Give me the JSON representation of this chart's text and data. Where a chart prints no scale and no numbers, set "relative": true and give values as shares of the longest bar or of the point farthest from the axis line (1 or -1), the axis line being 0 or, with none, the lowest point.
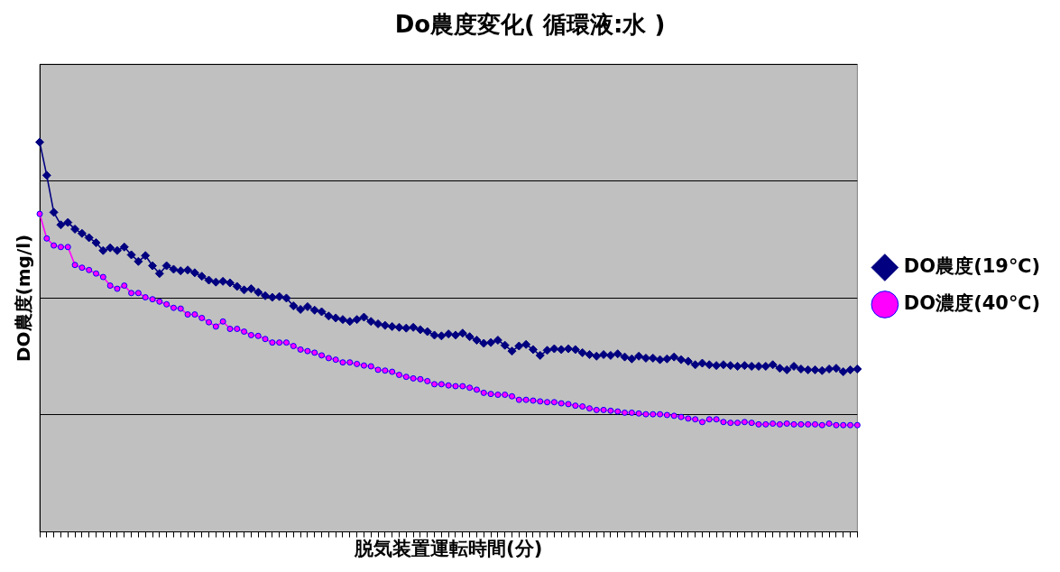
{
  "chart_data": {
    "type": "line",
    "title": "Do農度変化( 循環液:水 )",
    "xlabel": "脱気装置運転時間(分)",
    "ylabel": "DO農度(mg/l)",
    "relative": true,
    "grid": "y",
    "legend": "right",
    "categories": [
      null,
      null,
      null,
      null,
      null,
      null,
      null,
      null,
      null,
      null,
      null,
      null,
      null,
      null,
      null,
      null,
      null,
      null,
      null,
      null,
      null,
      null,
      null,
      null,
      null,
      null,
      null,
      null,
      null,
      null,
      null,
      null,
      null,
      null,
      null,
      null,
      null,
      null,
      null,
      null,
      null,
      null,
      null,
      null,
      null,
      null,
      null,
      null,
      null,
      null,
      null,
      null,
      null,
      null,
      null,
      null,
      null,
      null,
      null,
      null,
      null,
      null,
      null,
      null,
      null,
      null,
      null,
      null,
      null,
      null,
      null,
      null,
      null,
      null,
      null,
      null,
      null,
      null,
      null,
      null,
      null,
      null,
      null,
      null,
      null,
      null,
      null,
      null,
      null,
      null,
      null,
      null,
      null,
      null,
      null,
      null,
      null,
      null,
      null,
      null,
      null,
      null,
      null,
      null,
      null,
      null,
      null,
      null,
      null,
      null,
      null,
      null,
      null,
      null,
      null,
      null,
      null
    ],
    "series": [
      {
        "name": "DO農度(19℃)",
        "color": "#000080",
        "marker": "diamond",
        "values": [
          1.0,
          0.915,
          0.82,
          0.788,
          0.794,
          0.777,
          0.766,
          0.755,
          0.742,
          0.722,
          0.729,
          0.722,
          0.731,
          0.711,
          0.694,
          0.709,
          0.683,
          0.663,
          0.683,
          0.674,
          0.67,
          0.672,
          0.665,
          0.656,
          0.646,
          0.641,
          0.643,
          0.639,
          0.63,
          0.621,
          0.624,
          0.615,
          0.606,
          0.602,
          0.604,
          0.6,
          0.58,
          0.571,
          0.578,
          0.569,
          0.565,
          0.554,
          0.549,
          0.545,
          0.54,
          0.545,
          0.551,
          0.54,
          0.534,
          0.53,
          0.527,
          0.525,
          0.523,
          0.525,
          0.519,
          0.514,
          0.505,
          0.503,
          0.508,
          0.505,
          0.51,
          0.501,
          0.492,
          0.484,
          0.486,
          0.492,
          0.479,
          0.464,
          0.477,
          0.481,
          0.468,
          0.453,
          0.466,
          0.47,
          0.468,
          0.47,
          0.468,
          0.46,
          0.455,
          0.451,
          0.455,
          0.453,
          0.457,
          0.449,
          0.444,
          0.451,
          0.446,
          0.446,
          0.442,
          0.444,
          0.449,
          0.442,
          0.438,
          0.429,
          0.433,
          0.429,
          0.427,
          0.429,
          0.427,
          0.425,
          0.427,
          0.425,
          0.425,
          0.425,
          0.429,
          0.42,
          0.416,
          0.425,
          0.418,
          0.416,
          0.416,
          0.414,
          0.418,
          0.42,
          0.411,
          0.416,
          0.418
        ]
      },
      {
        "name": "DO濃度(40℃)",
        "color": "#ff00ff",
        "marker": "circle",
        "values": [
          0.816,
          0.753,
          0.735,
          0.731,
          0.731,
          0.685,
          0.678,
          0.672,
          0.663,
          0.654,
          0.632,
          0.624,
          0.632,
          0.613,
          0.613,
          0.602,
          0.597,
          0.591,
          0.584,
          0.575,
          0.573,
          0.558,
          0.558,
          0.549,
          0.538,
          0.527,
          0.54,
          0.521,
          0.521,
          0.514,
          0.505,
          0.503,
          0.495,
          0.486,
          0.486,
          0.486,
          0.477,
          0.468,
          0.464,
          0.46,
          0.453,
          0.446,
          0.442,
          0.435,
          0.435,
          0.431,
          0.427,
          0.425,
          0.416,
          0.414,
          0.411,
          0.403,
          0.398,
          0.394,
          0.392,
          0.387,
          0.379,
          0.379,
          0.376,
          0.374,
          0.374,
          0.37,
          0.365,
          0.357,
          0.354,
          0.352,
          0.352,
          0.348,
          0.339,
          0.339,
          0.337,
          0.335,
          0.333,
          0.333,
          0.33,
          0.328,
          0.324,
          0.322,
          0.317,
          0.313,
          0.313,
          0.311,
          0.309,
          0.306,
          0.306,
          0.304,
          0.302,
          0.302,
          0.302,
          0.3,
          0.298,
          0.295,
          0.291,
          0.289,
          0.282,
          0.289,
          0.289,
          0.282,
          0.28,
          0.28,
          0.282,
          0.28,
          0.276,
          0.276,
          0.278,
          0.276,
          0.278,
          0.276,
          0.276,
          0.276,
          0.276,
          0.274,
          0.278,
          0.274,
          0.274,
          0.274,
          0.274
        ]
      }
    ]
  }
}
